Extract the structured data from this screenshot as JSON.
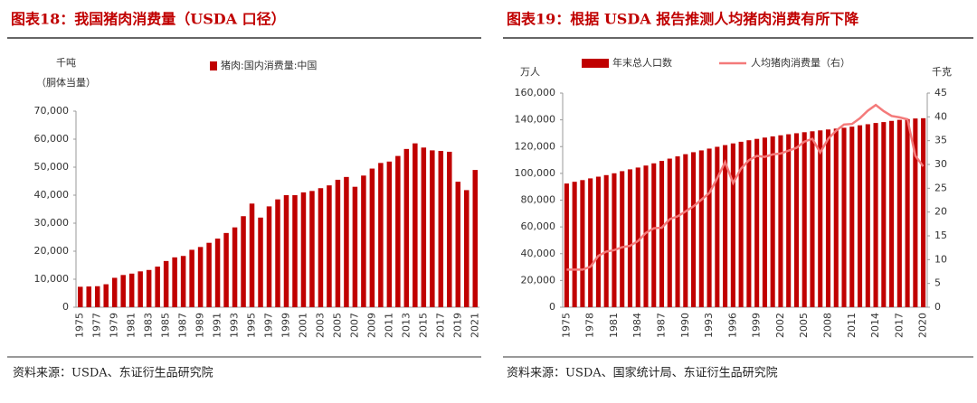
{
  "chart_data": [
    {
      "type": "bar",
      "title": "图表18：我国猪肉消费量（USDA 口径）",
      "ylabel": [
        "千吨",
        "（胴体当量）"
      ],
      "source": "资料来源：USDA、东证衍生品研究院",
      "categories": [
        "1975",
        null,
        "1977",
        null,
        "1979",
        null,
        "1981",
        null,
        "1983",
        null,
        "1985",
        null,
        "1987",
        null,
        "1989",
        null,
        "1991",
        null,
        "1993",
        null,
        "1995",
        null,
        "1997",
        null,
        "1999",
        null,
        "2001",
        null,
        "2003",
        null,
        "2005",
        null,
        "2007",
        null,
        "2009",
        null,
        "2011",
        null,
        "2013",
        null,
        "2015",
        null,
        "2017",
        null,
        "2019",
        null,
        "2021"
      ],
      "series": [
        {
          "name": "猪肉:国内消费量:中国",
          "color": "#c00000",
          "type": "bar",
          "values": [
            7300,
            7400,
            7500,
            8200,
            10500,
            11500,
            12000,
            12800,
            13300,
            14500,
            16500,
            17800,
            18300,
            20500,
            21500,
            23000,
            24500,
            26500,
            28500,
            32500,
            37000,
            32000,
            36000,
            38500,
            40000,
            40000,
            41000,
            41500,
            42500,
            43500,
            45500,
            46500,
            43000,
            47000,
            49500,
            51500,
            52000,
            54000,
            56500,
            58500,
            57000,
            56000,
            55800,
            55500,
            44800,
            41800,
            49000
          ]
        }
      ],
      "ylim": [
        0,
        70000
      ],
      "yticks": [
        0,
        {
          "value": 10000,
          "label": "10,000"
        },
        {
          "value": 20000,
          "label": "20,000"
        },
        {
          "value": 30000,
          "label": "30,000"
        },
        {
          "value": 40000,
          "label": "40,000"
        },
        {
          "value": 50000,
          "label": "50,000"
        },
        {
          "value": 60000,
          "label": "60,000"
        },
        {
          "value": 70000,
          "label": "70,000"
        }
      ],
      "legend": "top"
    },
    {
      "type": "combo",
      "title": "图表19：根据 USDA 报告推测人均猪肉消费有所下降",
      "ylabel": "万人",
      "y2label": "千克",
      "source": "资料来源：USDA、国家统计局、东证衍生品研究院",
      "categories": [
        "1975",
        null,
        null,
        "1978",
        null,
        null,
        "1981",
        null,
        null,
        "1984",
        null,
        null,
        "1987",
        null,
        null,
        "1990",
        null,
        null,
        "1993",
        null,
        null,
        "1996",
        null,
        null,
        "1999",
        null,
        null,
        "2002",
        null,
        null,
        "2005",
        null,
        null,
        "2008",
        null,
        null,
        "2011",
        null,
        null,
        "2014",
        null,
        null,
        "2017",
        null,
        null,
        "2020"
      ],
      "series": [
        {
          "name": "年末总人口数",
          "color": "#c00000",
          "type": "bar",
          "values": [
            92420,
            93717,
            94974,
            96259,
            97542,
            98705,
            100072,
            101654,
            103008,
            104357,
            105851,
            107507,
            109300,
            111026,
            112704,
            114333,
            115823,
            117171,
            118517,
            119850,
            121121,
            122389,
            123626,
            124761,
            125786,
            126743,
            127627,
            128453,
            129227,
            129988,
            130756,
            131448,
            132129,
            132802,
            133450,
            134091,
            134916,
            135922,
            136726,
            137646,
            138326,
            139232,
            140011,
            140541,
            141008,
            141212
          ]
        },
        {
          "name": "人均猪肉消费量（右）",
          "color": "#f47a7a",
          "type": "line",
          "axis": "y2",
          "values": [
            7.9,
            7.9,
            7.9,
            8.5,
            10.8,
            11.7,
            12.0,
            12.6,
            12.9,
            13.9,
            15.6,
            16.6,
            16.7,
            18.5,
            19.1,
            20.1,
            21.2,
            22.6,
            24.0,
            27.1,
            30.5,
            26.1,
            29.1,
            30.9,
            31.8,
            31.6,
            32.1,
            32.3,
            32.9,
            33.5,
            34.8,
            35.4,
            32.5,
            35.4,
            37.1,
            38.4,
            38.5,
            39.7,
            41.3,
            42.5,
            41.2,
            40.2,
            39.9,
            39.5,
            31.8,
            29.6
          ]
        }
      ],
      "ylim": [
        0,
        160000
      ],
      "yticks": [
        0,
        {
          "value": 20000,
          "label": "20,000"
        },
        {
          "value": 40000,
          "label": "40,000"
        },
        {
          "value": 60000,
          "label": "60,000"
        },
        {
          "value": 80000,
          "label": "80,000"
        },
        {
          "value": 100000,
          "label": "100,000"
        },
        {
          "value": 120000,
          "label": "120,000"
        },
        {
          "value": 140000,
          "label": "140,000"
        },
        {
          "value": 160000,
          "label": "160,000"
        }
      ],
      "y2lim": [
        0,
        45
      ],
      "y2ticks": [
        0,
        5,
        10,
        15,
        20,
        25,
        30,
        35,
        40,
        45
      ],
      "legend": "top"
    }
  ]
}
